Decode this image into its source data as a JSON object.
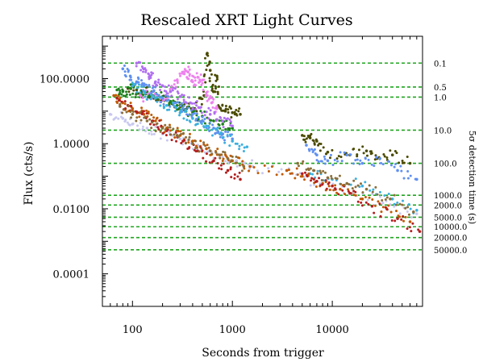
{
  "chart_data": {
    "type": "scatter",
    "title": "Rescaled XRT Light Curves",
    "xlabel": "Seconds from trigger",
    "ylabel": "Flux (cts/s)",
    "right_axis_label": "5σ detection time (s)",
    "x_scale": "log",
    "y_scale": "log",
    "xlim": [
      50,
      80000
    ],
    "ylim": [
      1e-05,
      2000
    ],
    "x_ticks": [
      {
        "value": 100,
        "label": "100"
      },
      {
        "value": 1000,
        "label": "1000"
      },
      {
        "value": 10000,
        "label": "10000"
      }
    ],
    "y_ticks": [
      {
        "value": 0.0001,
        "label": "0.0001"
      },
      {
        "value": 0.01,
        "label": "0.0100"
      },
      {
        "value": 1,
        "label": "1.0000"
      },
      {
        "value": 100,
        "label": "100.0000"
      }
    ],
    "detection_lines": [
      {
        "flux": 300,
        "label": "0.1"
      },
      {
        "flux": 55,
        "label": "0.5"
      },
      {
        "flux": 27,
        "label": "1.0"
      },
      {
        "flux": 2.6,
        "label": "10.0"
      },
      {
        "flux": 0.25,
        "label": "100.0"
      },
      {
        "flux": 0.026,
        "label": "1000.0"
      },
      {
        "flux": 0.013,
        "label": "2000.0"
      },
      {
        "flux": 0.0055,
        "label": "5000.0"
      },
      {
        "flux": 0.0028,
        "label": "10000.0"
      },
      {
        "flux": 0.0013,
        "label": "20000.0"
      },
      {
        "flux": 0.00055,
        "label": "50000.0"
      }
    ],
    "grid": false,
    "legend": "none",
    "series": [
      {
        "color": "#4a4a00",
        "points": [
          [
            90,
            50
          ],
          [
            110,
            45
          ],
          [
            150,
            32
          ],
          [
            200,
            22
          ],
          [
            300,
            15
          ],
          [
            420,
            12
          ],
          [
            520,
            30
          ],
          [
            560,
            600
          ],
          [
            600,
            180
          ],
          [
            650,
            40
          ],
          [
            700,
            120
          ],
          [
            760,
            12
          ],
          [
            850,
            10
          ],
          [
            1000,
            9
          ],
          [
            1200,
            8
          ],
          [
            5000,
            1.8
          ],
          [
            6000,
            1.5
          ],
          [
            7000,
            1.2
          ],
          [
            9000,
            0.55
          ],
          [
            15000,
            0.45
          ],
          [
            22000,
            0.6
          ],
          [
            28000,
            0.35
          ],
          [
            40000,
            0.45
          ],
          [
            60000,
            0.25
          ]
        ]
      },
      {
        "color": "#1e7f1e",
        "points": [
          [
            70,
            45
          ],
          [
            80,
            40
          ],
          [
            95,
            50
          ],
          [
            110,
            35
          ],
          [
            140,
            40
          ],
          [
            160,
            30
          ],
          [
            200,
            28
          ],
          [
            240,
            20
          ],
          [
            280,
            15
          ],
          [
            330,
            11
          ],
          [
            400,
            9
          ],
          [
            500,
            7
          ],
          [
            650,
            5
          ],
          [
            800,
            4
          ],
          [
            1000,
            3
          ]
        ]
      },
      {
        "color": "#ee82ee",
        "points": [
          [
            120,
            30
          ],
          [
            160,
            28
          ],
          [
            200,
            25
          ],
          [
            240,
            40
          ],
          [
            280,
            90
          ],
          [
            330,
            140
          ],
          [
            360,
            160
          ],
          [
            400,
            80
          ],
          [
            450,
            110
          ],
          [
            500,
            90
          ],
          [
            560,
            30
          ],
          [
            620,
            18
          ],
          [
            700,
            12
          ]
        ]
      },
      {
        "color": "#b070f0",
        "points": [
          [
            110,
            300
          ],
          [
            130,
            200
          ],
          [
            150,
            120
          ],
          [
            170,
            80
          ],
          [
            200,
            60
          ],
          [
            240,
            40
          ],
          [
            300,
            28
          ],
          [
            380,
            18
          ],
          [
            460,
            13
          ],
          [
            600,
            8
          ],
          [
            800,
            5
          ],
          [
            1000,
            3.5
          ]
        ]
      },
      {
        "color": "#6090f0",
        "points": [
          [
            80,
            200
          ],
          [
            95,
            120
          ],
          [
            110,
            80
          ],
          [
            130,
            60
          ],
          [
            160,
            40
          ],
          [
            200,
            25
          ],
          [
            260,
            18
          ],
          [
            320,
            12
          ],
          [
            400,
            8
          ],
          [
            500,
            5
          ],
          [
            650,
            3
          ],
          [
            800,
            2
          ],
          [
            1000,
            1.4
          ],
          [
            5500,
            0.9
          ],
          [
            7000,
            0.45
          ],
          [
            9000,
            0.3
          ],
          [
            14000,
            0.45
          ],
          [
            20000,
            0.25
          ],
          [
            30000,
            0.35
          ],
          [
            45000,
            0.15
          ],
          [
            70000,
            0.08
          ]
        ]
      },
      {
        "color": "#3bb0e0",
        "points": [
          [
            100,
            60
          ],
          [
            130,
            40
          ],
          [
            170,
            25
          ],
          [
            220,
            15
          ],
          [
            300,
            9
          ],
          [
            400,
            6
          ],
          [
            550,
            3.5
          ],
          [
            750,
            2
          ],
          [
            1000,
            1.2
          ],
          [
            1400,
            0.8
          ],
          [
            6000,
            0.12
          ],
          [
            10000,
            0.08
          ],
          [
            20000,
            0.05
          ],
          [
            40000,
            0.02
          ],
          [
            70000,
            0.009
          ]
        ]
      },
      {
        "color": "#c8c8f0",
        "points": [
          [
            60,
            8
          ],
          [
            80,
            6
          ],
          [
            100,
            4
          ],
          [
            140,
            3
          ],
          [
            200,
            2
          ],
          [
            300,
            1.4
          ],
          [
            450,
            0.9
          ],
          [
            700,
            0.5
          ],
          [
            1100,
            0.3
          ],
          [
            1600,
            0.2
          ],
          [
            4000,
            0.12
          ],
          [
            8000,
            0.06
          ],
          [
            16000,
            0.03
          ],
          [
            32000,
            0.015
          ],
          [
            70000,
            0.007
          ]
        ]
      },
      {
        "color": "#c05a00",
        "points": [
          [
            65,
            30
          ],
          [
            80,
            18
          ],
          [
            100,
            12
          ],
          [
            130,
            8
          ],
          [
            170,
            5
          ],
          [
            220,
            3
          ],
          [
            300,
            1.8
          ],
          [
            400,
            1.2
          ],
          [
            550,
            0.7
          ],
          [
            750,
            0.45
          ],
          [
            1000,
            0.3
          ],
          [
            1500,
            0.2
          ],
          [
            3500,
            0.15
          ],
          [
            5000,
            0.1
          ],
          [
            8000,
            0.06
          ],
          [
            12000,
            0.04
          ],
          [
            20000,
            0.02
          ],
          [
            35000,
            0.01
          ],
          [
            60000,
            0.004
          ]
        ]
      },
      {
        "color": "#b41e1e",
        "points": [
          [
            70,
            25
          ],
          [
            90,
            15
          ],
          [
            120,
            9
          ],
          [
            160,
            5
          ],
          [
            220,
            2.5
          ],
          [
            320,
            1.2
          ],
          [
            450,
            0.6
          ],
          [
            650,
            0.3
          ],
          [
            900,
            0.15
          ],
          [
            1200,
            0.08
          ],
          [
            5000,
            0.12
          ],
          [
            7000,
            0.07
          ],
          [
            10000,
            0.05
          ],
          [
            15000,
            0.03
          ],
          [
            25000,
            0.012
          ],
          [
            45000,
            0.005
          ],
          [
            75000,
            0.002
          ]
        ]
      },
      {
        "color": "#8a6e3a",
        "points": [
          [
            75,
            14
          ],
          [
            100,
            8
          ],
          [
            140,
            5
          ],
          [
            200,
            3
          ],
          [
            280,
            1.8
          ],
          [
            400,
            1
          ],
          [
            600,
            0.6
          ],
          [
            900,
            0.35
          ],
          [
            1300,
            0.2
          ],
          [
            4500,
            0.25
          ],
          [
            6500,
            0.15
          ],
          [
            9000,
            0.09
          ],
          [
            14000,
            0.06
          ],
          [
            22000,
            0.04
          ],
          [
            38000,
            0.02
          ],
          [
            65000,
            0.008
          ]
        ]
      }
    ]
  }
}
